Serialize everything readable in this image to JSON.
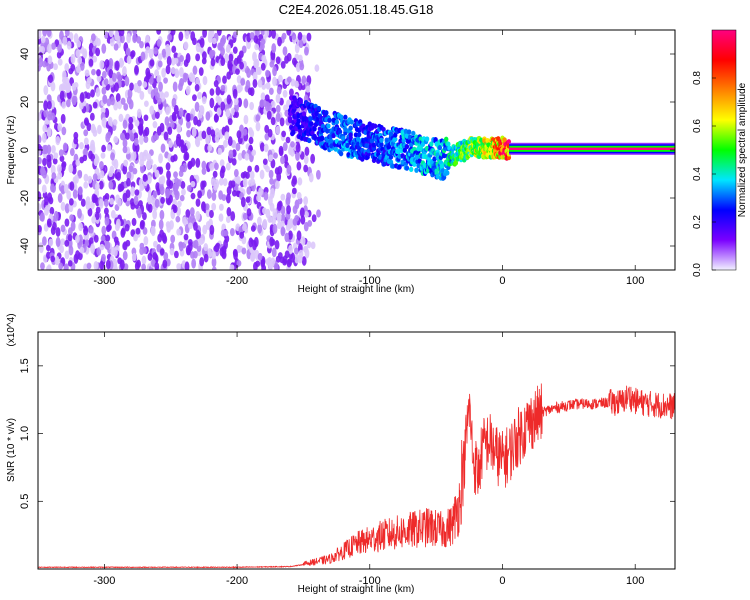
{
  "title": "C2E4.2026.051.18.45.G18",
  "colorbar": {
    "label": "Normalized spectral amplitude",
    "ticks": [
      "0.0",
      "0.2",
      "0.4",
      "0.6",
      "0.8"
    ],
    "tick_values": [
      0.0,
      0.2,
      0.4,
      0.6,
      0.8
    ],
    "colors": [
      "#f2f2ff",
      "#7a00ff",
      "#0000ff",
      "#00e6ff",
      "#00ff00",
      "#ffff00",
      "#ff8000",
      "#ff0000",
      "#ff0080"
    ]
  },
  "chart_data": [
    {
      "type": "heatmap",
      "name": "spectrogram",
      "xlabel": "Height of straight line (km)",
      "ylabel": "Frequency (Hz)",
      "xlim": [
        -350,
        130
      ],
      "ylim": [
        -50,
        50
      ],
      "xticks": [
        -300,
        -200,
        -100,
        0,
        100
      ],
      "yticks": [
        -40,
        -20,
        0,
        20,
        40
      ],
      "noise_region_x": [
        -350,
        -145
      ],
      "signal_track": {
        "x": [
          -160,
          -140,
          -120,
          -100,
          -80,
          -60,
          -45,
          -35,
          -25,
          -10,
          0,
          5,
          130
        ],
        "y": [
          15,
          10,
          6,
          3,
          1,
          -2,
          -4,
          -2,
          1,
          1,
          1,
          0,
          0
        ],
        "amplitude": [
          0.2,
          0.3,
          0.35,
          0.3,
          0.35,
          0.4,
          0.4,
          0.5,
          0.6,
          0.7,
          0.9,
          1.0,
          1.0
        ]
      },
      "colorscale": "rainbow"
    },
    {
      "type": "line",
      "name": "snr",
      "xlabel": "Height of straight line (km)",
      "ylabel": "SNR (10 * v/v)",
      "y_multiplier": "(x10^4)",
      "xlim": [
        -350,
        130
      ],
      "ylim": [
        0,
        17500
      ],
      "xticks": [
        -300,
        -200,
        -100,
        0,
        100
      ],
      "yticks": [
        5000,
        10000,
        15000
      ],
      "ytick_labels": [
        "0.5",
        "1.0",
        "1.5"
      ],
      "color": "#ee2a2a",
      "series": [
        {
          "x": [
            -350,
            -300,
            -250,
            -200,
            -160,
            -130,
            -110,
            -90,
            -70,
            -55,
            -45,
            -38,
            -32,
            -28,
            -25,
            -22,
            -18,
            -15,
            -10,
            -5,
            0,
            5,
            10,
            20,
            30,
            40,
            50,
            60,
            70,
            80,
            90,
            95,
            100,
            110,
            120,
            130
          ],
          "values": [
            100,
            100,
            100,
            100,
            150,
            600,
            1500,
            2000,
            2300,
            2500,
            2300,
            2600,
            4000,
            9000,
            12000,
            8000,
            7000,
            9000,
            9500,
            8500,
            8000,
            8500,
            9500,
            10800,
            11600,
            11900,
            12100,
            12200,
            12200,
            12300,
            12300,
            12800,
            12400,
            12200,
            12100,
            12000
          ]
        }
      ]
    }
  ]
}
